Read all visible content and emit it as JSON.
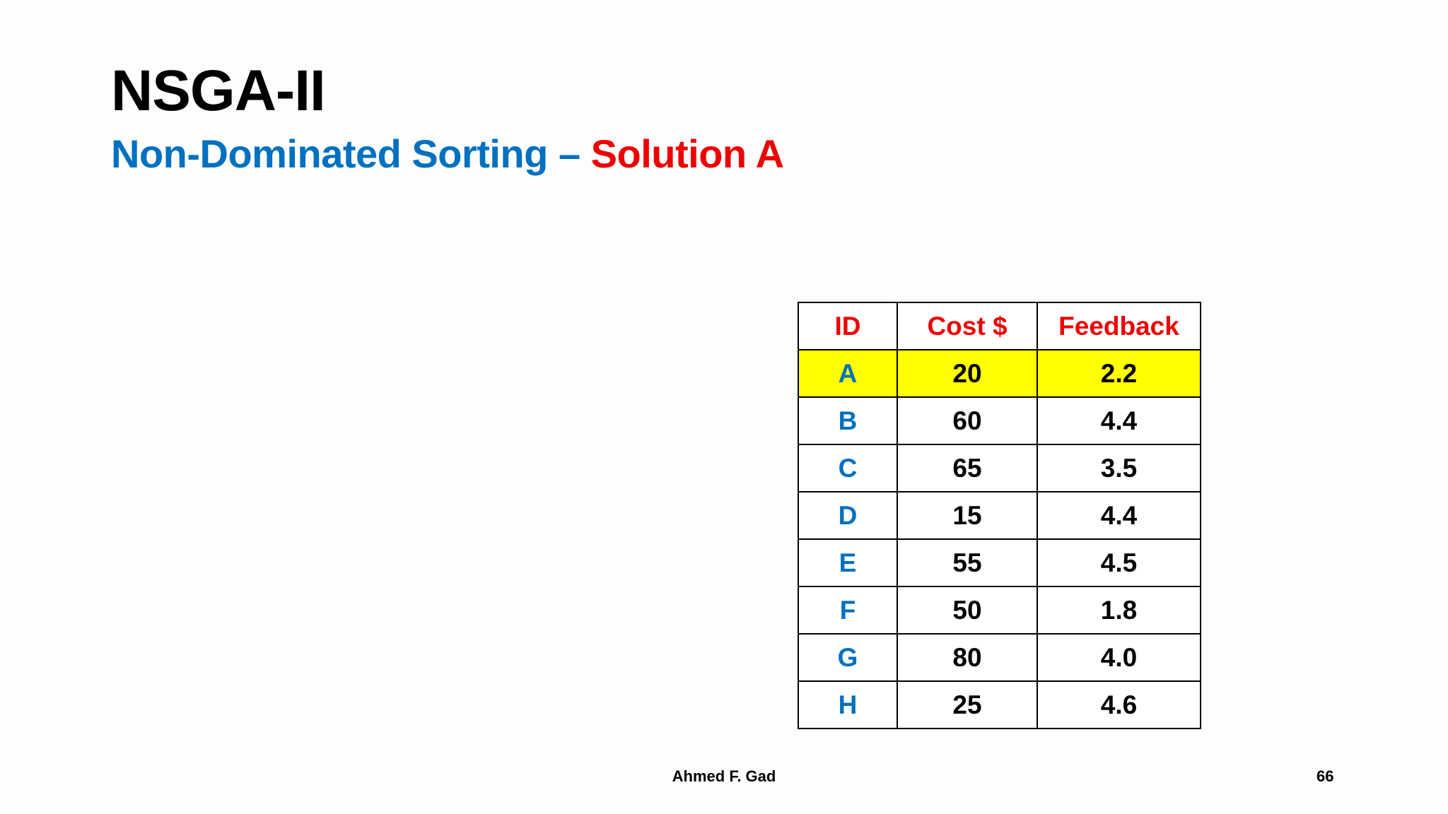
{
  "slide": {
    "title": "NSGA-II",
    "subtitle_main": "Non-Dominated Sorting",
    "subtitle_separator": " – ",
    "subtitle_accent": "Solution A",
    "footer_author": "Ahmed F. Gad",
    "page_number": "66"
  },
  "colors": {
    "title": "#000000",
    "subtitle_main": "#0070c0",
    "subtitle_accent": "#ee0000",
    "header_text": "#ee0000",
    "id_text": "#0070c0",
    "highlight_row": "#ffff00"
  },
  "table": {
    "headers": [
      "ID",
      "Cost $",
      "Feedback"
    ],
    "highlighted_id": "A",
    "rows": [
      {
        "id": "A",
        "cost": "20",
        "feedback": "2.2"
      },
      {
        "id": "B",
        "cost": "60",
        "feedback": "4.4"
      },
      {
        "id": "C",
        "cost": "65",
        "feedback": "3.5"
      },
      {
        "id": "D",
        "cost": "15",
        "feedback": "4.4"
      },
      {
        "id": "E",
        "cost": "55",
        "feedback": "4.5"
      },
      {
        "id": "F",
        "cost": "50",
        "feedback": "1.8"
      },
      {
        "id": "G",
        "cost": "80",
        "feedback": "4.0"
      },
      {
        "id": "H",
        "cost": "25",
        "feedback": "4.6"
      }
    ]
  }
}
